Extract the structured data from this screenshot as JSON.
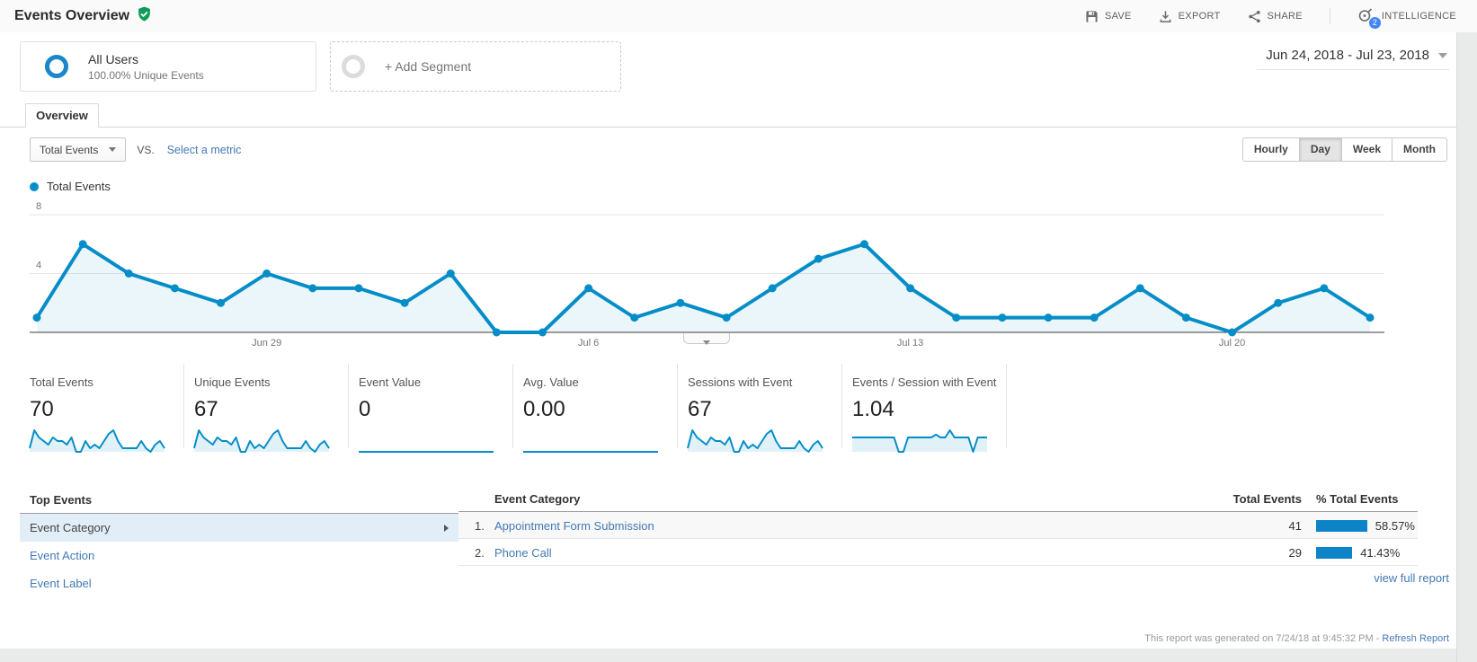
{
  "colors": {
    "chart_line": "#058dc7",
    "chart_fill": "#e6f3fa",
    "link": "#4479b4",
    "bar": "#0d83c8",
    "selected_row_bg": "#e2eef7",
    "green_check": "#0f9d58",
    "badge": "#4285f4"
  },
  "header": {
    "title": "Events Overview",
    "actions": [
      {
        "label": "SAVE",
        "icon": "save-icon"
      },
      {
        "label": "EXPORT",
        "icon": "export-icon"
      },
      {
        "label": "SHARE",
        "icon": "share-icon"
      },
      {
        "label": "INTELLIGENCE",
        "icon": "intelligence-icon",
        "badge": "2"
      }
    ]
  },
  "segments": {
    "active": {
      "name": "All Users",
      "detail": "100.00% Unique Events"
    },
    "add_label": "+ Add Segment"
  },
  "date_range": "Jun 24, 2018 - Jul 23, 2018",
  "tab": "Overview",
  "toolbar": {
    "metric_selector": "Total Events",
    "vs_label": "VS.",
    "select_metric_label": "Select a metric",
    "granularity": [
      "Hourly",
      "Day",
      "Week",
      "Month"
    ],
    "granularity_active": "Day"
  },
  "legend": "Total Events",
  "chart_data": {
    "type": "line",
    "series_name": "Total Events",
    "x": [
      "Jun 24",
      "Jun 25",
      "Jun 26",
      "Jun 27",
      "Jun 28",
      "Jun 29",
      "Jun 30",
      "Jul 1",
      "Jul 2",
      "Jul 3",
      "Jul 4",
      "Jul 5",
      "Jul 6",
      "Jul 7",
      "Jul 8",
      "Jul 9",
      "Jul 10",
      "Jul 11",
      "Jul 12",
      "Jul 13",
      "Jul 14",
      "Jul 15",
      "Jul 16",
      "Jul 17",
      "Jul 18",
      "Jul 19",
      "Jul 20",
      "Jul 21",
      "Jul 22",
      "Jul 23"
    ],
    "values": [
      1,
      6,
      4,
      3,
      2,
      4,
      3,
      3,
      2,
      4,
      0,
      0,
      3,
      1,
      2,
      1,
      3,
      5,
      6,
      3,
      1,
      1,
      1,
      1,
      3,
      1,
      0,
      2,
      3,
      1
    ],
    "ylim": [
      0,
      9
    ],
    "yticks": [
      4,
      8
    ],
    "x_ticks": [
      {
        "label": "Jun 29",
        "index": 5
      },
      {
        "label": "Jul 6",
        "index": 12
      },
      {
        "label": "Jul 13",
        "index": 19
      },
      {
        "label": "Jul 20",
        "index": 26
      }
    ],
    "grid": true,
    "legend_position": "top-left"
  },
  "scorecards": [
    {
      "label": "Total Events",
      "value": "70",
      "spark": [
        1,
        6,
        4,
        3,
        2,
        4,
        3,
        3,
        2,
        4,
        0,
        0,
        3,
        1,
        2,
        1,
        3,
        5,
        6,
        3,
        1,
        1,
        1,
        1,
        3,
        1,
        0,
        2,
        3,
        1
      ]
    },
    {
      "label": "Unique Events",
      "value": "67",
      "spark": [
        1,
        6,
        4,
        3,
        2,
        4,
        3,
        3,
        2,
        4,
        0,
        0,
        3,
        1,
        2,
        1,
        3,
        5,
        6,
        3,
        1,
        1,
        1,
        1,
        3,
        1,
        0,
        2,
        3,
        1
      ]
    },
    {
      "label": "Event Value",
      "value": "0",
      "spark": [
        0,
        0,
        0,
        0,
        0,
        0,
        0,
        0,
        0,
        0,
        0,
        0,
        0,
        0,
        0,
        0,
        0,
        0,
        0,
        0,
        0,
        0,
        0,
        0,
        0,
        0,
        0,
        0,
        0,
        0
      ]
    },
    {
      "label": "Avg. Value",
      "value": "0.00",
      "spark": [
        0,
        0,
        0,
        0,
        0,
        0,
        0,
        0,
        0,
        0,
        0,
        0,
        0,
        0,
        0,
        0,
        0,
        0,
        0,
        0,
        0,
        0,
        0,
        0,
        0,
        0,
        0,
        0,
        0,
        0
      ]
    },
    {
      "label": "Sessions with Event",
      "value": "67",
      "spark": [
        1,
        6,
        4,
        3,
        2,
        4,
        3,
        3,
        2,
        4,
        0,
        0,
        3,
        1,
        2,
        1,
        3,
        5,
        6,
        3,
        1,
        1,
        1,
        1,
        3,
        1,
        0,
        2,
        3,
        1
      ]
    },
    {
      "label": "Events / Session with Event",
      "value": "1.04",
      "spark": [
        1,
        1,
        1,
        1,
        1,
        1,
        1,
        1,
        1,
        1,
        0,
        0,
        1,
        1,
        1,
        1,
        1,
        1,
        1.2,
        1,
        1,
        1.5,
        1,
        1,
        1,
        1,
        0,
        1,
        1,
        1
      ]
    }
  ],
  "top_events": {
    "title": "Top Events",
    "items": [
      {
        "label": "Event Category",
        "selected": true
      },
      {
        "label": "Event Action",
        "selected": false
      },
      {
        "label": "Event Label",
        "selected": false
      }
    ]
  },
  "events_table": {
    "columns": [
      "Event Category",
      "Total Events",
      "% Total Events"
    ],
    "rows": [
      {
        "rank": "1.",
        "category": "Appointment Form Submission",
        "total": "41",
        "percent": "58.57%"
      },
      {
        "rank": "2.",
        "category": "Phone Call",
        "total": "29",
        "percent": "41.43%"
      }
    ],
    "view_full_report": "view full report"
  },
  "footer": {
    "generated_text": "This report was generated on 7/24/18 at 9:45:32 PM -",
    "refresh_label": "Refresh Report"
  }
}
